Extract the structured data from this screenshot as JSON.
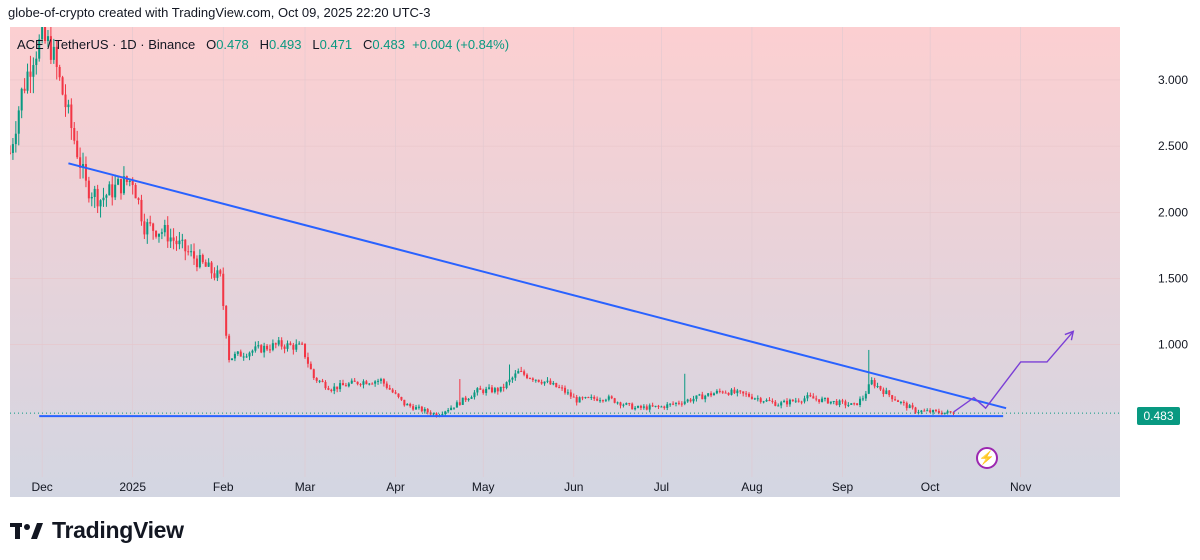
{
  "header": {
    "attribution": "globe-of-crypto created with TradingView.com, Oct 09, 2025 22:20 UTC-3"
  },
  "symbol": {
    "name": "ACE / TetherUS · 1D · Binance",
    "o_label": "O",
    "o": "0.478",
    "h_label": "H",
    "h": "0.493",
    "l_label": "L",
    "l": "0.471",
    "c_label": "C",
    "c": "0.483",
    "change": "+0.004 (+0.84%)"
  },
  "last_price_label": "0.483",
  "logo": {
    "text": "TradingView",
    "icon": "tradingview-logo-icon"
  },
  "alert_icon": "lightning-icon",
  "colors": {
    "up": "#089981",
    "down": "#f23645",
    "trendline": "#2962ff",
    "projection": "#7b3fd6",
    "bg_top": "#fcd0d2",
    "bg_bottom": "#d3d6e2"
  },
  "chart_data": {
    "type": "candlestick",
    "ylim": [
      0.0,
      3.4
    ],
    "y_ticks": [
      "3.000",
      "2.500",
      "2.000",
      "1.500",
      "1.000"
    ],
    "y_tick_values": [
      3.0,
      2.5,
      2.0,
      1.5,
      1.0
    ],
    "x_ticks": [
      "Dec",
      "2025",
      "Feb",
      "Mar",
      "Apr",
      "May",
      "Jun",
      "Jul",
      "Aug",
      "Sep",
      "Oct",
      "Nov"
    ],
    "x_tick_dates": [
      "2024-12-01",
      "2025-01-01",
      "2025-02-01",
      "2025-03-01",
      "2025-04-01",
      "2025-05-01",
      "2025-06-01",
      "2025-07-01",
      "2025-08-01",
      "2025-09-01",
      "2025-10-01",
      "2025-11-01"
    ],
    "xlim": [
      "2024-11-20",
      "2025-12-05"
    ],
    "price_anchors": [
      [
        "2024-11-20",
        2.45
      ],
      [
        "2024-11-24",
        2.9
      ],
      [
        "2024-11-28",
        3.2
      ],
      [
        "2024-12-01",
        3.3
      ],
      [
        "2024-12-04",
        3.25
      ],
      [
        "2024-12-08",
        2.9
      ],
      [
        "2024-12-12",
        2.55
      ],
      [
        "2024-12-16",
        2.2
      ],
      [
        "2024-12-21",
        2.1
      ],
      [
        "2024-12-27",
        2.2
      ],
      [
        "2025-01-01",
        2.25
      ],
      [
        "2025-01-05",
        1.9
      ],
      [
        "2025-01-12",
        1.85
      ],
      [
        "2025-01-17",
        1.75
      ],
      [
        "2025-01-24",
        1.62
      ],
      [
        "2025-01-31",
        1.5
      ],
      [
        "2025-02-03",
        0.9
      ],
      [
        "2025-02-10",
        0.95
      ],
      [
        "2025-02-20",
        1.0
      ],
      [
        "2025-02-28",
        0.98
      ],
      [
        "2025-03-04",
        0.75
      ],
      [
        "2025-03-10",
        0.67
      ],
      [
        "2025-03-20",
        0.72
      ],
      [
        "2025-03-27",
        0.73
      ],
      [
        "2025-04-04",
        0.55
      ],
      [
        "2025-04-15",
        0.47
      ],
      [
        "2025-04-22",
        0.55
      ],
      [
        "2025-04-29",
        0.65
      ],
      [
        "2025-05-07",
        0.66
      ],
      [
        "2025-05-13",
        0.79
      ],
      [
        "2025-05-22",
        0.72
      ],
      [
        "2025-05-28",
        0.66
      ],
      [
        "2025-06-02",
        0.58
      ],
      [
        "2025-06-12",
        0.6
      ],
      [
        "2025-06-22",
        0.52
      ],
      [
        "2025-07-01",
        0.53
      ],
      [
        "2025-07-10",
        0.58
      ],
      [
        "2025-07-22",
        0.65
      ],
      [
        "2025-07-30",
        0.62
      ],
      [
        "2025-08-10",
        0.55
      ],
      [
        "2025-08-20",
        0.6
      ],
      [
        "2025-08-28",
        0.57
      ],
      [
        "2025-09-05",
        0.54
      ],
      [
        "2025-09-08",
        0.6
      ],
      [
        "2025-09-11",
        0.72
      ],
      [
        "2025-09-15",
        0.65
      ],
      [
        "2025-09-21",
        0.56
      ],
      [
        "2025-09-26",
        0.5
      ],
      [
        "2025-10-03",
        0.49
      ],
      [
        "2025-10-09",
        0.483
      ]
    ],
    "spikes": [
      [
        "2024-12-14",
        2.4
      ],
      [
        "2025-04-23",
        0.74
      ],
      [
        "2025-05-10",
        0.85
      ],
      [
        "2025-07-09",
        0.78
      ],
      [
        "2025-09-10",
        0.96
      ]
    ],
    "last_price": 0.483,
    "resistance_line": [
      [
        "2024-12-10",
        2.37
      ],
      [
        "2025-10-27",
        0.52
      ]
    ],
    "support_line": [
      [
        "2024-11-30",
        0.46
      ],
      [
        "2025-10-26",
        0.46
      ]
    ],
    "projection": [
      [
        "2025-10-09",
        0.49
      ],
      [
        "2025-10-16",
        0.6
      ],
      [
        "2025-10-20",
        0.52
      ],
      [
        "2025-11-01",
        0.87
      ],
      [
        "2025-11-10",
        0.87
      ],
      [
        "2025-11-19",
        1.1
      ]
    ]
  }
}
